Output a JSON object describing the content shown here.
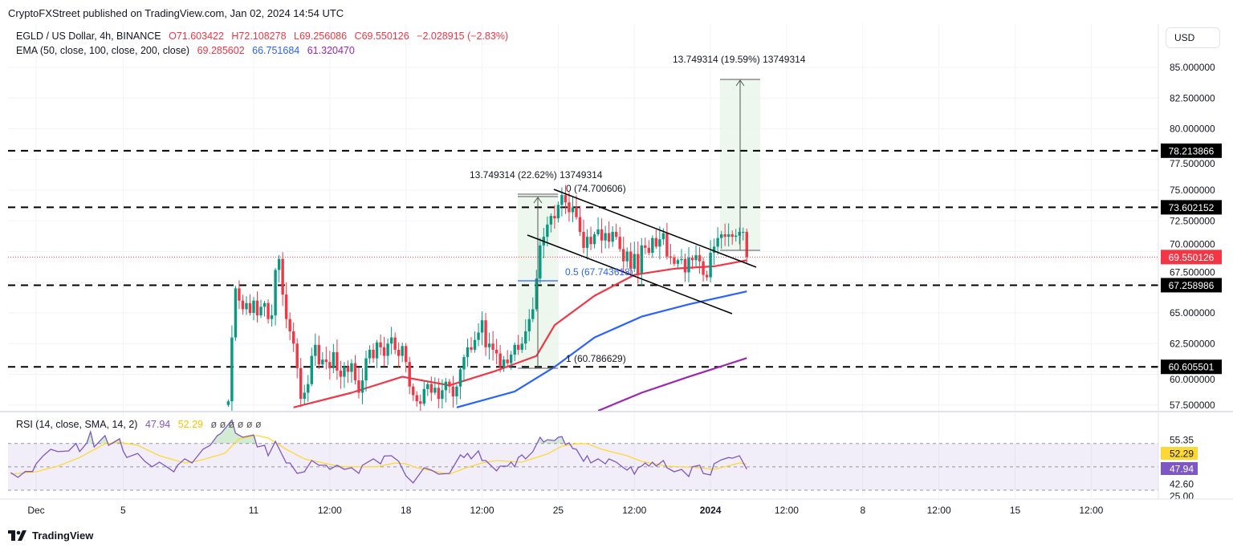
{
  "header": {
    "published": "CryptoFXStreet published on TradingView.com, Jan 02, 2024 14:54 UTC",
    "symbol": "EGLD / US Dollar, 4h, BINANCE",
    "open": "O71.603422",
    "high": "H72.108278",
    "low": "L69.256086",
    "close": "C69.550126",
    "change": "−2.028915 (−2.83%)",
    "ema_label": "EMA (50, close, 100, close, 200, close)",
    "ema50_value": "69.285602",
    "ema100_value": "66.751684",
    "ema200_value": "61.320470"
  },
  "currency_button": "USD",
  "rsi_legend": {
    "label": "RSI (14, close, SMA, 14, 2)",
    "rsi_value": "47.94",
    "sma_value": "52.29",
    "extras": "ø  ø  ø  ø  ø  ø"
  },
  "footer": {
    "brand": "TradingView"
  },
  "annotations": {
    "measure_1": "13.749314 (22.62%) 13749314",
    "measure_2": "13.749314 (19.59%) 13749314",
    "fib_0": "0 (74.700606)",
    "fib_05": "0.5 (67.743618)",
    "fib_1": "1 (60.786629)"
  },
  "colors": {
    "up": "#089981",
    "down": "#f23645",
    "ema50": "#f23645",
    "ema100": "#2962ff",
    "ema200": "#9c27b0",
    "rsi": "#7e57c2",
    "rsi_sma": "#fdd835"
  },
  "chart_data": [
    {
      "type": "candlestick",
      "title": "EGLD / US Dollar, 4h, BINANCE",
      "interval": "4h",
      "ylim": [
        57.5,
        85
      ],
      "grid": true,
      "y_ticks": [
        "85.000000",
        "82.500000",
        "80.000000",
        "77.500000",
        "75.000000",
        "72.500000",
        "70.000000",
        "67.500000",
        "65.000000",
        "62.500000",
        "60.000000",
        "57.500000"
      ],
      "x_ticks": [
        {
          "t": "2023-12-01T00:00",
          "label": "Dec"
        },
        {
          "t": "2023-12-05T00:00",
          "label": "5"
        },
        {
          "t": "2023-12-11T00:00",
          "label": "11"
        },
        {
          "t": "2023-12-14T12:00",
          "label": "12:00"
        },
        {
          "t": "2023-12-18T00:00",
          "label": "18"
        },
        {
          "t": "2023-12-21T12:00",
          "label": "12:00"
        },
        {
          "t": "2023-12-25T00:00",
          "label": "25"
        },
        {
          "t": "2023-12-28T12:00",
          "label": "12:00"
        },
        {
          "t": "2024-01-01T00:00",
          "label": "2024"
        },
        {
          "t": "2024-01-04T12:00",
          "label": "12:00"
        },
        {
          "t": "2024-01-08T00:00",
          "label": "8"
        },
        {
          "t": "2024-01-11T12:00",
          "label": "12:00"
        },
        {
          "t": "2024-01-15T00:00",
          "label": "15"
        },
        {
          "t": "2024-01-18T12:00",
          "label": "12:00"
        }
      ],
      "candles_start": "2023-12-09T20:00",
      "close": [
        57.8,
        63,
        67,
        66,
        65.3,
        65.8,
        65,
        66,
        64.8,
        65.5,
        65.8,
        64.5,
        64.8,
        68.5,
        69.4,
        66.5,
        64.5,
        63.5,
        62.5,
        60.5,
        58,
        58.5,
        59.2,
        61.5,
        62.4,
        60.8,
        61.2,
        61.0,
        60.5,
        61.8,
        60.3,
        59.8,
        60.6,
        60.2,
        60.9,
        59.5,
        58.5,
        59.5,
        61.3,
        62.0,
        61.3,
        62.6,
        62.2,
        61.5,
        62.5,
        63.0,
        62.0,
        61.5,
        62.3,
        61.0,
        59.0,
        58.3,
        57.8,
        57.6,
        58.8,
        59.2,
        58.5,
        58.9,
        58.0,
        58.7,
        59.4,
        59.0,
        58.2,
        59.0,
        60.4,
        61.4,
        62.2,
        62.0,
        62.8,
        63.4,
        64.4,
        62.2,
        62.5,
        62.0,
        61.7,
        60.6,
        61.2,
        60.9,
        61.6,
        62.4,
        62.0,
        62.5,
        63.5,
        64.5,
        65.3,
        67.8,
        70.5,
        71.2,
        72.2,
        72.9,
        72.7,
        73.8,
        74.6,
        74.0,
        73.2,
        73.6,
        72.8,
        71.6,
        70.3,
        71.2,
        70.6,
        71.4,
        71.8,
        70.9,
        71.5,
        70.8,
        71.6,
        71.2,
        70.2,
        69.2,
        70.0,
        68.6,
        69.8,
        68.2,
        70.5,
        70.3,
        69.9,
        71.1,
        70.4,
        71.0,
        71.5,
        69.6,
        69.5,
        69.0,
        69.3,
        69.4,
        68.3,
        69.5,
        69.3,
        69.7,
        69.2,
        68.1,
        67.9,
        69.9,
        70.4,
        71.1,
        71.4,
        71.2,
        71.4,
        71.2,
        71.3,
        71.6,
        71.6,
        69.55
      ],
      "first_open": 57.5,
      "last_price": "69.550126",
      "levels": [
        "78.213866",
        "73.602152",
        "67.258986",
        "60.605501"
      ],
      "ema": [
        {
          "name": "EMA 50",
          "points": [
            [
              "2023-12-12T20:00",
              57.3
            ],
            [
              "2023-12-15T12:00",
              58.5
            ],
            [
              "2023-12-17T20:00",
              59.8
            ],
            [
              "2023-12-20T00:00",
              59.1
            ],
            [
              "2023-12-22T04:00",
              60.3
            ],
            [
              "2023-12-24T00:00",
              61.5
            ],
            [
              "2023-12-24T20:00",
              64.0
            ],
            [
              "2023-12-26T16:00",
              66.4
            ],
            [
              "2023-12-28T12:00",
              68.1
            ],
            [
              "2023-12-30T08:00",
              68.6
            ],
            [
              "2024-01-01T04:00",
              68.8
            ],
            [
              "2024-01-02T16:00",
              69.29
            ]
          ]
        },
        {
          "name": "EMA 100",
          "points": [
            [
              "2023-12-20T08:00",
              57.3
            ],
            [
              "2023-12-23T00:00",
              58.6
            ],
            [
              "2023-12-24T20:00",
              60.6
            ],
            [
              "2023-12-26T16:00",
              63.0
            ],
            [
              "2023-12-28T20:00",
              64.7
            ],
            [
              "2023-12-31T00:00",
              65.7
            ],
            [
              "2024-01-02T16:00",
              66.75
            ]
          ]
        },
        {
          "name": "EMA 200",
          "points": [
            [
              "2023-12-26T20:00",
              57.0
            ],
            [
              "2023-12-28T20:00",
              58.5
            ],
            [
              "2023-12-31T00:00",
              59.8
            ],
            [
              "2024-01-02T16:00",
              61.32
            ]
          ]
        }
      ]
    },
    {
      "type": "line",
      "title": "RSI (14, close, SMA, 14, 2)",
      "bands": [
        70,
        50,
        30
      ],
      "axis_labels": [
        "55.35",
        "42.60",
        "25.00"
      ],
      "rsi": [
        [
          "2023-11-29T20:00",
          45
        ],
        [
          "2023-11-30T04:00",
          41
        ],
        [
          "2023-11-30T12:00",
          46
        ],
        [
          "2023-11-30T20:00",
          46
        ],
        [
          "2023-12-01T00:00",
          52.6
        ],
        [
          "2023-12-01T08:00",
          59.5
        ],
        [
          "2023-12-01T16:00",
          65
        ],
        [
          "2023-12-02T00:00",
          63
        ],
        [
          "2023-12-02T12:00",
          63.6
        ],
        [
          "2023-12-02T20:00",
          70
        ],
        [
          "2023-12-03T00:00",
          63
        ],
        [
          "2023-12-03T08:00",
          70.5
        ],
        [
          "2023-12-03T12:00",
          80
        ],
        [
          "2023-12-03T16:00",
          67
        ],
        [
          "2023-12-04T04:00",
          76.7
        ],
        [
          "2023-12-04T08:00",
          68.4
        ],
        [
          "2023-12-04T20:00",
          74
        ],
        [
          "2023-12-05T00:00",
          63.6
        ],
        [
          "2023-12-05T04:00",
          58
        ],
        [
          "2023-12-05T16:00",
          61.5
        ],
        [
          "2023-12-06T00:00",
          54.7
        ],
        [
          "2023-12-06T08:00",
          50
        ],
        [
          "2023-12-06T16:00",
          54
        ],
        [
          "2023-12-07T00:00",
          50
        ],
        [
          "2023-12-07T08:00",
          45.8
        ],
        [
          "2023-12-07T12:00",
          51.3
        ],
        [
          "2023-12-07T20:00",
          56.8
        ],
        [
          "2023-12-08T04:00",
          53.3
        ],
        [
          "2023-12-08T16:00",
          65
        ],
        [
          "2023-12-09T00:00",
          68.4
        ],
        [
          "2023-12-09T08:00",
          76.7
        ],
        [
          "2023-12-09T12:00",
          78.7
        ],
        [
          "2023-12-10T00:00",
          90
        ],
        [
          "2023-12-10T04:00",
          78.7
        ],
        [
          "2023-12-10T12:00",
          75.3
        ],
        [
          "2023-12-11T00:00",
          77.3
        ],
        [
          "2023-12-11T04:00",
          67
        ],
        [
          "2023-12-11T12:00",
          68.4
        ],
        [
          "2023-12-11T16:00",
          59.5
        ],
        [
          "2023-12-12T00:00",
          71.8
        ],
        [
          "2023-12-12T12:00",
          53.3
        ],
        [
          "2023-12-12T16:00",
          53.3
        ],
        [
          "2023-12-13T00:00",
          44.4
        ],
        [
          "2023-12-13T08:00",
          45.8
        ],
        [
          "2023-12-13T16:00",
          55.4
        ],
        [
          "2023-12-14T00:00",
          51.3
        ],
        [
          "2023-12-14T08:00",
          51.3
        ],
        [
          "2023-12-14T12:00",
          47.8
        ],
        [
          "2023-12-14T20:00",
          51.3
        ],
        [
          "2023-12-15T04:00",
          47.8
        ],
        [
          "2023-12-15T12:00",
          49.2
        ],
        [
          "2023-12-15T20:00",
          44.4
        ],
        [
          "2023-12-16T00:00",
          51.3
        ],
        [
          "2023-12-16T12:00",
          56.8
        ],
        [
          "2023-12-16T20:00",
          52.6
        ],
        [
          "2023-12-17T00:00",
          59.2
        ],
        [
          "2023-12-17T08:00",
          59.5
        ],
        [
          "2023-12-17T16:00",
          54.7
        ],
        [
          "2023-12-18T00:00",
          42.3
        ],
        [
          "2023-12-18T08:00",
          36.2
        ],
        [
          "2023-12-18T20:00",
          49.2
        ],
        [
          "2023-12-19T04:00",
          47.2
        ],
        [
          "2023-12-19T12:00",
          43.7
        ],
        [
          "2023-12-20T00:00",
          44.4
        ],
        [
          "2023-12-20T12:00",
          60.2
        ],
        [
          "2023-12-20T16:00",
          58
        ],
        [
          "2023-12-20T20:00",
          61.5
        ],
        [
          "2023-12-21T00:00",
          56.8
        ],
        [
          "2023-12-21T08:00",
          63.6
        ],
        [
          "2023-12-21T12:00",
          55.4
        ],
        [
          "2023-12-21T16:00",
          55.4
        ],
        [
          "2023-12-22T04:00",
          46.5
        ],
        [
          "2023-12-22T08:00",
          50.6
        ],
        [
          "2023-12-22T16:00",
          50.6
        ],
        [
          "2023-12-22T20:00",
          54
        ],
        [
          "2023-12-23T00:00",
          50
        ],
        [
          "2023-12-23T04:00",
          58
        ],
        [
          "2023-12-23T08:00",
          60.2
        ],
        [
          "2023-12-23T12:00",
          56.8
        ],
        [
          "2023-12-23T20:00",
          63
        ],
        [
          "2023-12-24T04:00",
          75.3
        ],
        [
          "2023-12-24T08:00",
          71.2
        ],
        [
          "2023-12-24T12:00",
          73.2
        ],
        [
          "2023-12-24T20:00",
          72.5
        ],
        [
          "2023-12-25T00:00",
          75.3
        ],
        [
          "2023-12-25T04:00",
          75.9
        ],
        [
          "2023-12-25T08:00",
          69.1
        ],
        [
          "2023-12-25T12:00",
          70.5
        ],
        [
          "2023-12-25T16:00",
          65.7
        ],
        [
          "2023-12-25T20:00",
          65
        ],
        [
          "2023-12-26T04:00",
          54.7
        ],
        [
          "2023-12-26T08:00",
          59.5
        ],
        [
          "2023-12-26T12:00",
          53.3
        ],
        [
          "2023-12-26T20:00",
          56.8
        ],
        [
          "2023-12-27T04:00",
          52.6
        ],
        [
          "2023-12-27T08:00",
          56.8
        ],
        [
          "2023-12-27T12:00",
          55.4
        ],
        [
          "2023-12-27T16:00",
          54
        ],
        [
          "2023-12-28T00:00",
          49.2
        ],
        [
          "2023-12-28T04:00",
          47.2
        ],
        [
          "2023-12-28T08:00",
          50
        ],
        [
          "2023-12-28T12:00",
          43.7
        ],
        [
          "2023-12-28T16:00",
          49.2
        ],
        [
          "2023-12-28T20:00",
          50.6
        ],
        [
          "2023-12-29T00:00",
          53.3
        ],
        [
          "2023-12-29T04:00",
          50.6
        ],
        [
          "2023-12-29T08:00",
          54
        ],
        [
          "2023-12-29T12:00",
          50.6
        ],
        [
          "2023-12-29T20:00",
          55.4
        ],
        [
          "2023-12-30T00:00",
          49.2
        ],
        [
          "2023-12-30T08:00",
          45.8
        ],
        [
          "2023-12-30T16:00",
          47.8
        ],
        [
          "2023-12-31T00:00",
          41.7
        ],
        [
          "2023-12-31T04:00",
          50
        ],
        [
          "2023-12-31T12:00",
          51.3
        ],
        [
          "2023-12-31T16:00",
          44.4
        ],
        [
          "2024-01-01T00:00",
          43
        ],
        [
          "2024-01-01T04:00",
          52.6
        ],
        [
          "2024-01-01T12:00",
          56
        ],
        [
          "2024-01-01T20:00",
          58
        ],
        [
          "2024-01-02T00:00",
          57.4
        ],
        [
          "2024-01-02T08:00",
          59.5
        ],
        [
          "2024-01-02T16:00",
          47.94
        ]
      ],
      "sma": [
        [
          "2023-11-29T20:00",
          43.7
        ],
        [
          "2023-12-01T00:00",
          45.8
        ],
        [
          "2023-12-02T00:00",
          50.6
        ],
        [
          "2023-12-03T00:00",
          58
        ],
        [
          "2023-12-04T04:00",
          69.8
        ],
        [
          "2023-12-04T20:00",
          71
        ],
        [
          "2023-12-05T16:00",
          68.4
        ],
        [
          "2023-12-06T16:00",
          59.5
        ],
        [
          "2023-12-07T20:00",
          53.3
        ],
        [
          "2023-12-08T12:00",
          55.4
        ],
        [
          "2023-12-09T16:00",
          61.5
        ],
        [
          "2023-12-10T08:00",
          74
        ],
        [
          "2023-12-11T04:00",
          76.7
        ],
        [
          "2023-12-11T16:00",
          74.7
        ],
        [
          "2023-12-12T12:00",
          65
        ],
        [
          "2023-12-13T08:00",
          56.8
        ],
        [
          "2023-12-14T12:00",
          52
        ],
        [
          "2023-12-15T04:00",
          50
        ],
        [
          "2023-12-16T16:00",
          50
        ],
        [
          "2023-12-17T12:00",
          53.3
        ],
        [
          "2023-12-18T00:00",
          52.6
        ],
        [
          "2023-12-18T12:00",
          49.2
        ],
        [
          "2023-12-20T00:00",
          43.7
        ],
        [
          "2023-12-20T16:00",
          48.5
        ],
        [
          "2023-12-21T12:00",
          53.3
        ],
        [
          "2023-12-22T04:00",
          55.4
        ],
        [
          "2023-12-23T08:00",
          54
        ],
        [
          "2023-12-24T12:00",
          61
        ],
        [
          "2023-12-25T04:00",
          67.7
        ],
        [
          "2023-12-25T20:00",
          69.8
        ],
        [
          "2023-12-26T08:00",
          69.8
        ],
        [
          "2023-12-27T00:00",
          65
        ],
        [
          "2023-12-28T04:00",
          59.5
        ],
        [
          "2023-12-28T20:00",
          54.7
        ],
        [
          "2023-12-30T00:00",
          50.6
        ],
        [
          "2023-12-31T12:00",
          49.2
        ],
        [
          "2024-01-01T04:00",
          47.8
        ],
        [
          "2024-01-01T16:00",
          50
        ],
        [
          "2024-01-02T08:00",
          53.3
        ],
        [
          "2024-01-02T16:00",
          52.29
        ]
      ]
    }
  ]
}
